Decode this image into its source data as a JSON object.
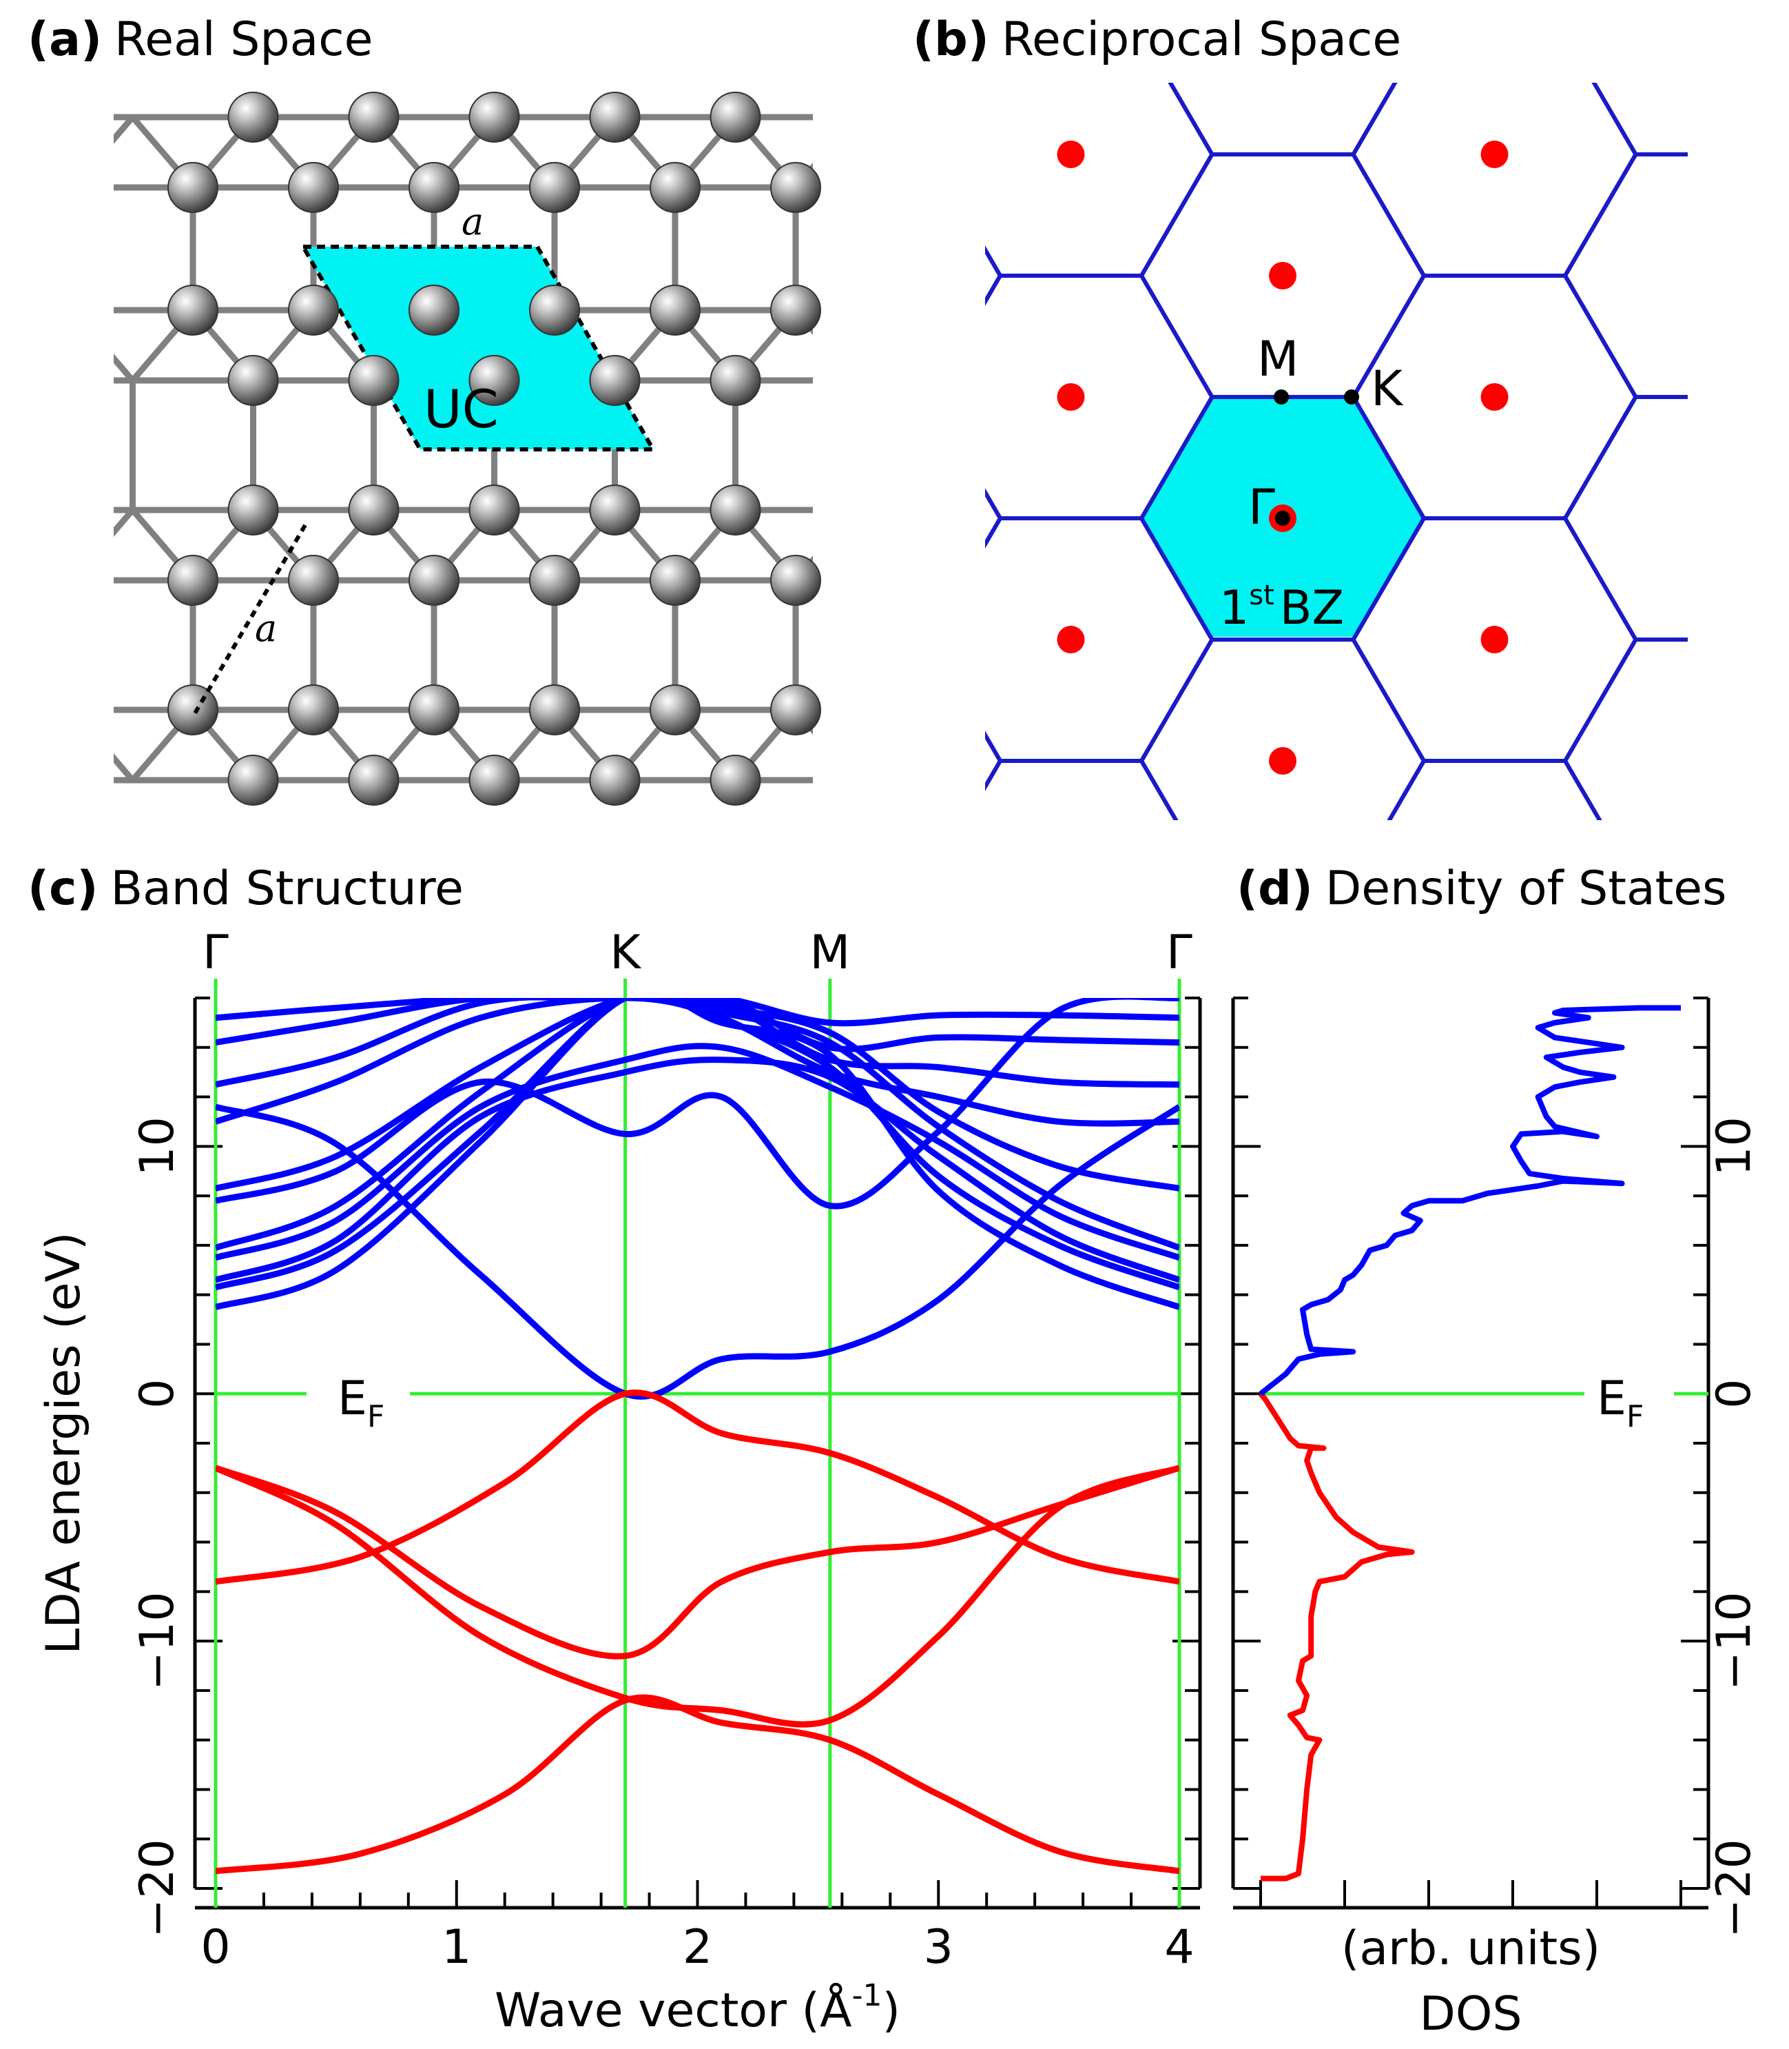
{
  "panels": {
    "a": {
      "letter": "(a)",
      "title": "Real Space",
      "uc_label": "UC",
      "lattice_label": "a"
    },
    "b": {
      "letter": "(b)",
      "title": "Reciprocal Space",
      "bz_label": "BZ",
      "bz_ordinal": "1",
      "bz_sup": "st",
      "points": {
        "gamma": "Γ",
        "m": "M",
        "k": "K"
      }
    },
    "c": {
      "letter": "(c)",
      "title": "Band Structure"
    },
    "d": {
      "letter": "(d)",
      "title": "Density of States"
    }
  },
  "colors": {
    "conduction": "#0000ff",
    "valence": "#ff0000",
    "markers": "#33ee33",
    "bz_fill": "#00f2f2",
    "lattice": "#1a1ac8",
    "reciprocal_points": "#ff0000"
  },
  "chart_data": [
    {
      "type": "line",
      "title": "Band Structure",
      "xlabel": "Wave vector (Å",
      "xlabel_sup": "-1",
      "xlabel_end": ")",
      "ylabel": "LDA energies (eV)",
      "xlim": [
        0,
        4.0
      ],
      "ylim": [
        -20,
        16
      ],
      "xticks": [
        "0",
        "1",
        "2",
        "3",
        "4"
      ],
      "yticks": [
        "−20",
        "−10",
        "0",
        "10"
      ],
      "ytick_values": [
        -20,
        -10,
        0,
        10
      ],
      "fermi_label": "E",
      "fermi_sub": "F",
      "high_symmetry": [
        {
          "label": "Γ",
          "x": 0
        },
        {
          "label": "K",
          "x": 1.7
        },
        {
          "label": "M",
          "x": 2.55
        },
        {
          "label": "Γ",
          "x": 4.0
        }
      ],
      "valence_bands": [
        {
          "points": [
            [
              0,
              -19.3
            ],
            [
              0.6,
              -18.6
            ],
            [
              1.2,
              -16.2
            ],
            [
              1.7,
              -12.4
            ],
            [
              2.1,
              -13.3
            ],
            [
              2.55,
              -14.0
            ],
            [
              3.0,
              -16.2
            ],
            [
              3.5,
              -18.5
            ],
            [
              4.0,
              -19.3
            ]
          ]
        },
        {
          "points": [
            [
              0,
              -7.6
            ],
            [
              0.6,
              -6.6
            ],
            [
              1.2,
              -3.6
            ],
            [
              1.7,
              0
            ],
            [
              2.1,
              -1.6
            ],
            [
              2.55,
              -2.4
            ],
            [
              3.0,
              -4.2
            ],
            [
              3.5,
              -6.6
            ],
            [
              4.0,
              -7.6
            ]
          ]
        },
        {
          "points": [
            [
              0,
              -3.0
            ],
            [
              0.5,
              -4.8
            ],
            [
              1.1,
              -8.6
            ],
            [
              1.7,
              -10.6
            ],
            [
              2.1,
              -7.6
            ],
            [
              2.55,
              -6.4
            ],
            [
              3.0,
              -6.0
            ],
            [
              3.5,
              -4.5
            ],
            [
              4.0,
              -3.0
            ]
          ]
        },
        {
          "points": [
            [
              0,
              -3.0
            ],
            [
              0.5,
              -5.3
            ],
            [
              1.1,
              -9.8
            ],
            [
              1.7,
              -12.3
            ],
            [
              2.1,
              -12.8
            ],
            [
              2.55,
              -13.2
            ],
            [
              3.0,
              -9.8
            ],
            [
              3.5,
              -4.6
            ],
            [
              4.0,
              -3.0
            ]
          ]
        }
      ],
      "conduction_bands": [
        {
          "points": [
            [
              0,
              11.6
            ],
            [
              0.5,
              10.1
            ],
            [
              1.1,
              4.8
            ],
            [
              1.7,
              0
            ],
            [
              2.1,
              1.4
            ],
            [
              2.55,
              1.7
            ],
            [
              3.0,
              3.8
            ],
            [
              3.5,
              8.4
            ],
            [
              4.0,
              11.6
            ]
          ]
        },
        {
          "points": [
            [
              0,
              3.5
            ],
            [
              0.5,
              5.0
            ],
            [
              1.1,
              10.2
            ],
            [
              1.7,
              16.0
            ],
            [
              2.1,
              15.0
            ],
            [
              2.55,
              13.7
            ],
            [
              3.0,
              8.2
            ],
            [
              3.5,
              5.2
            ],
            [
              4.0,
              3.5
            ]
          ]
        },
        {
          "points": [
            [
              0,
              4.3
            ],
            [
              0.5,
              5.8
            ],
            [
              1.1,
              10.6
            ],
            [
              1.7,
              16.0
            ],
            [
              2.1,
              15.1
            ],
            [
              2.55,
              13.2
            ],
            [
              3.0,
              8.8
            ],
            [
              3.5,
              6.0
            ],
            [
              4.0,
              4.3
            ]
          ]
        },
        {
          "points": [
            [
              0,
              4.6
            ],
            [
              0.5,
              6.2
            ],
            [
              1.1,
              11.2
            ],
            [
              1.7,
              13.0
            ],
            [
              2.1,
              13.5
            ],
            [
              2.55,
              12.8
            ],
            [
              3.0,
              9.6
            ],
            [
              3.5,
              6.4
            ],
            [
              4.0,
              4.6
            ]
          ]
        },
        {
          "points": [
            [
              0,
              5.5
            ],
            [
              0.5,
              7.0
            ],
            [
              1.1,
              11.6
            ],
            [
              1.7,
              13.5
            ],
            [
              2.1,
              14.0
            ],
            [
              2.55,
              12.4
            ],
            [
              3.0,
              10.2
            ],
            [
              3.5,
              7.2
            ],
            [
              4.0,
              5.5
            ]
          ]
        },
        {
          "points": [
            [
              0,
              5.9
            ],
            [
              0.5,
              7.6
            ],
            [
              1.1,
              12.2
            ],
            [
              1.7,
              16.0
            ],
            [
              2.1,
              15.4
            ],
            [
              2.55,
              14.2
            ],
            [
              3.0,
              10.8
            ],
            [
              3.5,
              7.8
            ],
            [
              4.0,
              5.9
            ]
          ]
        },
        {
          "points": [
            [
              0,
              7.8
            ],
            [
              0.5,
              9.0
            ],
            [
              1.1,
              12.6
            ],
            [
              1.7,
              10.5
            ],
            [
              2.1,
              12.0
            ],
            [
              2.55,
              7.6
            ],
            [
              3.0,
              10.6
            ],
            [
              3.5,
              15.5
            ],
            [
              4.0,
              16.0
            ]
          ]
        },
        {
          "points": [
            [
              0,
              8.3
            ],
            [
              0.5,
              9.6
            ],
            [
              1.1,
              13.2
            ],
            [
              1.7,
              16.0
            ],
            [
              2.1,
              15.6
            ],
            [
              2.55,
              14.6
            ],
            [
              3.0,
              11.4
            ],
            [
              3.5,
              9.2
            ],
            [
              4.0,
              8.3
            ]
          ]
        },
        {
          "points": [
            [
              0,
              11.0
            ],
            [
              0.5,
              12.6
            ],
            [
              1.1,
              15.2
            ],
            [
              1.7,
              16.0
            ],
            [
              2.1,
              15.2
            ],
            [
              2.55,
              13.0
            ],
            [
              3.0,
              12.0
            ],
            [
              3.5,
              11.0
            ],
            [
              4.0,
              11.0
            ]
          ]
        },
        {
          "points": [
            [
              0,
              12.5
            ],
            [
              0.5,
              13.6
            ],
            [
              1.1,
              15.8
            ],
            [
              1.7,
              16.0
            ],
            [
              2.1,
              15.8
            ],
            [
              2.55,
              13.5
            ],
            [
              3.0,
              13.2
            ],
            [
              3.5,
              12.6
            ],
            [
              4.0,
              12.5
            ]
          ]
        },
        {
          "points": [
            [
              0,
              14.2
            ],
            [
              0.5,
              15.0
            ],
            [
              1.1,
              16.0
            ],
            [
              1.7,
              16.0
            ],
            [
              2.1,
              16.0
            ],
            [
              2.55,
              14.0
            ],
            [
              3.0,
              14.4
            ],
            [
              3.5,
              14.3
            ],
            [
              4.0,
              14.2
            ]
          ]
        },
        {
          "points": [
            [
              0,
              15.2
            ],
            [
              0.5,
              15.6
            ],
            [
              1.1,
              16.0
            ],
            [
              1.7,
              16.0
            ],
            [
              2.1,
              16.0
            ],
            [
              2.55,
              15.0
            ],
            [
              3.0,
              15.3
            ],
            [
              3.5,
              15.3
            ],
            [
              4.0,
              15.2
            ]
          ]
        }
      ]
    },
    {
      "type": "line",
      "title": "Density of States",
      "xlabel": "(arb. units)",
      "xlabel2": "DOS",
      "ylim": [
        -20,
        16
      ],
      "xlim": [
        0,
        5.0
      ],
      "yticks": [
        "−20",
        "−10",
        "0",
        "10"
      ],
      "ytick_values": [
        -20,
        -10,
        0,
        10
      ],
      "fermi_label": "E",
      "fermi_sub": "F",
      "valence_dos": [
        [
          0.0,
          -19.6
        ],
        [
          0.3,
          -19.6
        ],
        [
          0.45,
          -19.4
        ],
        [
          0.5,
          -18.0
        ],
        [
          0.55,
          -16.0
        ],
        [
          0.6,
          -14.6
        ],
        [
          0.7,
          -14.0
        ],
        [
          0.55,
          -13.9
        ],
        [
          0.45,
          -13.4
        ],
        [
          0.35,
          -13.0
        ],
        [
          0.5,
          -12.8
        ],
        [
          0.55,
          -12.2
        ],
        [
          0.45,
          -11.6
        ],
        [
          0.5,
          -10.8
        ],
        [
          0.6,
          -10.6
        ],
        [
          0.6,
          -9.0
        ],
        [
          0.65,
          -8.0
        ],
        [
          0.7,
          -7.6
        ],
        [
          1.0,
          -7.4
        ],
        [
          1.2,
          -6.8
        ],
        [
          1.5,
          -6.5
        ],
        [
          1.8,
          -6.4
        ],
        [
          1.4,
          -6.2
        ],
        [
          1.1,
          -5.6
        ],
        [
          0.9,
          -5.0
        ],
        [
          0.7,
          -4.0
        ],
        [
          0.6,
          -3.2
        ],
        [
          0.55,
          -2.7
        ],
        [
          0.6,
          -2.2
        ],
        [
          0.75,
          -2.2
        ],
        [
          0.45,
          -2.1
        ],
        [
          0.35,
          -1.8
        ],
        [
          0.2,
          -1.0
        ],
        [
          0.05,
          -0.2
        ],
        [
          0.0,
          0.0
        ]
      ],
      "conduction_dos": [
        [
          0.0,
          0.0
        ],
        [
          0.15,
          0.4
        ],
        [
          0.3,
          0.8
        ],
        [
          0.45,
          1.4
        ],
        [
          0.7,
          1.6
        ],
        [
          1.1,
          1.7
        ],
        [
          0.6,
          1.8
        ],
        [
          0.55,
          2.4
        ],
        [
          0.5,
          3.4
        ],
        [
          0.6,
          3.6
        ],
        [
          0.8,
          3.8
        ],
        [
          0.95,
          4.2
        ],
        [
          1.0,
          4.6
        ],
        [
          1.1,
          4.8
        ],
        [
          1.2,
          5.2
        ],
        [
          1.3,
          5.8
        ],
        [
          1.5,
          6.0
        ],
        [
          1.6,
          6.4
        ],
        [
          1.8,
          6.6
        ],
        [
          1.9,
          7.0
        ],
        [
          1.7,
          7.3
        ],
        [
          1.8,
          7.6
        ],
        [
          2.0,
          7.8
        ],
        [
          2.4,
          7.8
        ],
        [
          2.7,
          8.1
        ],
        [
          2.9,
          8.2
        ],
        [
          3.1,
          8.3
        ],
        [
          3.3,
          8.4
        ],
        [
          3.6,
          8.6
        ],
        [
          4.3,
          8.5
        ],
        [
          3.6,
          8.7
        ],
        [
          3.2,
          8.9
        ],
        [
          3.1,
          9.4
        ],
        [
          3.0,
          10.0
        ],
        [
          3.1,
          10.5
        ],
        [
          3.6,
          10.6
        ],
        [
          4.0,
          10.4
        ],
        [
          3.5,
          10.8
        ],
        [
          3.4,
          11.2
        ],
        [
          3.3,
          12.0
        ],
        [
          3.5,
          12.4
        ],
        [
          3.8,
          12.6
        ],
        [
          4.2,
          12.8
        ],
        [
          3.8,
          13.0
        ],
        [
          3.6,
          13.2
        ],
        [
          3.4,
          13.6
        ],
        [
          3.8,
          13.8
        ],
        [
          4.3,
          14.0
        ],
        [
          3.9,
          14.2
        ],
        [
          3.5,
          14.4
        ],
        [
          3.3,
          14.8
        ],
        [
          3.5,
          15.0
        ],
        [
          3.9,
          15.2
        ],
        [
          3.5,
          15.4
        ],
        [
          3.6,
          15.5
        ],
        [
          4.5,
          15.6
        ],
        [
          5.0,
          15.6
        ]
      ]
    }
  ]
}
